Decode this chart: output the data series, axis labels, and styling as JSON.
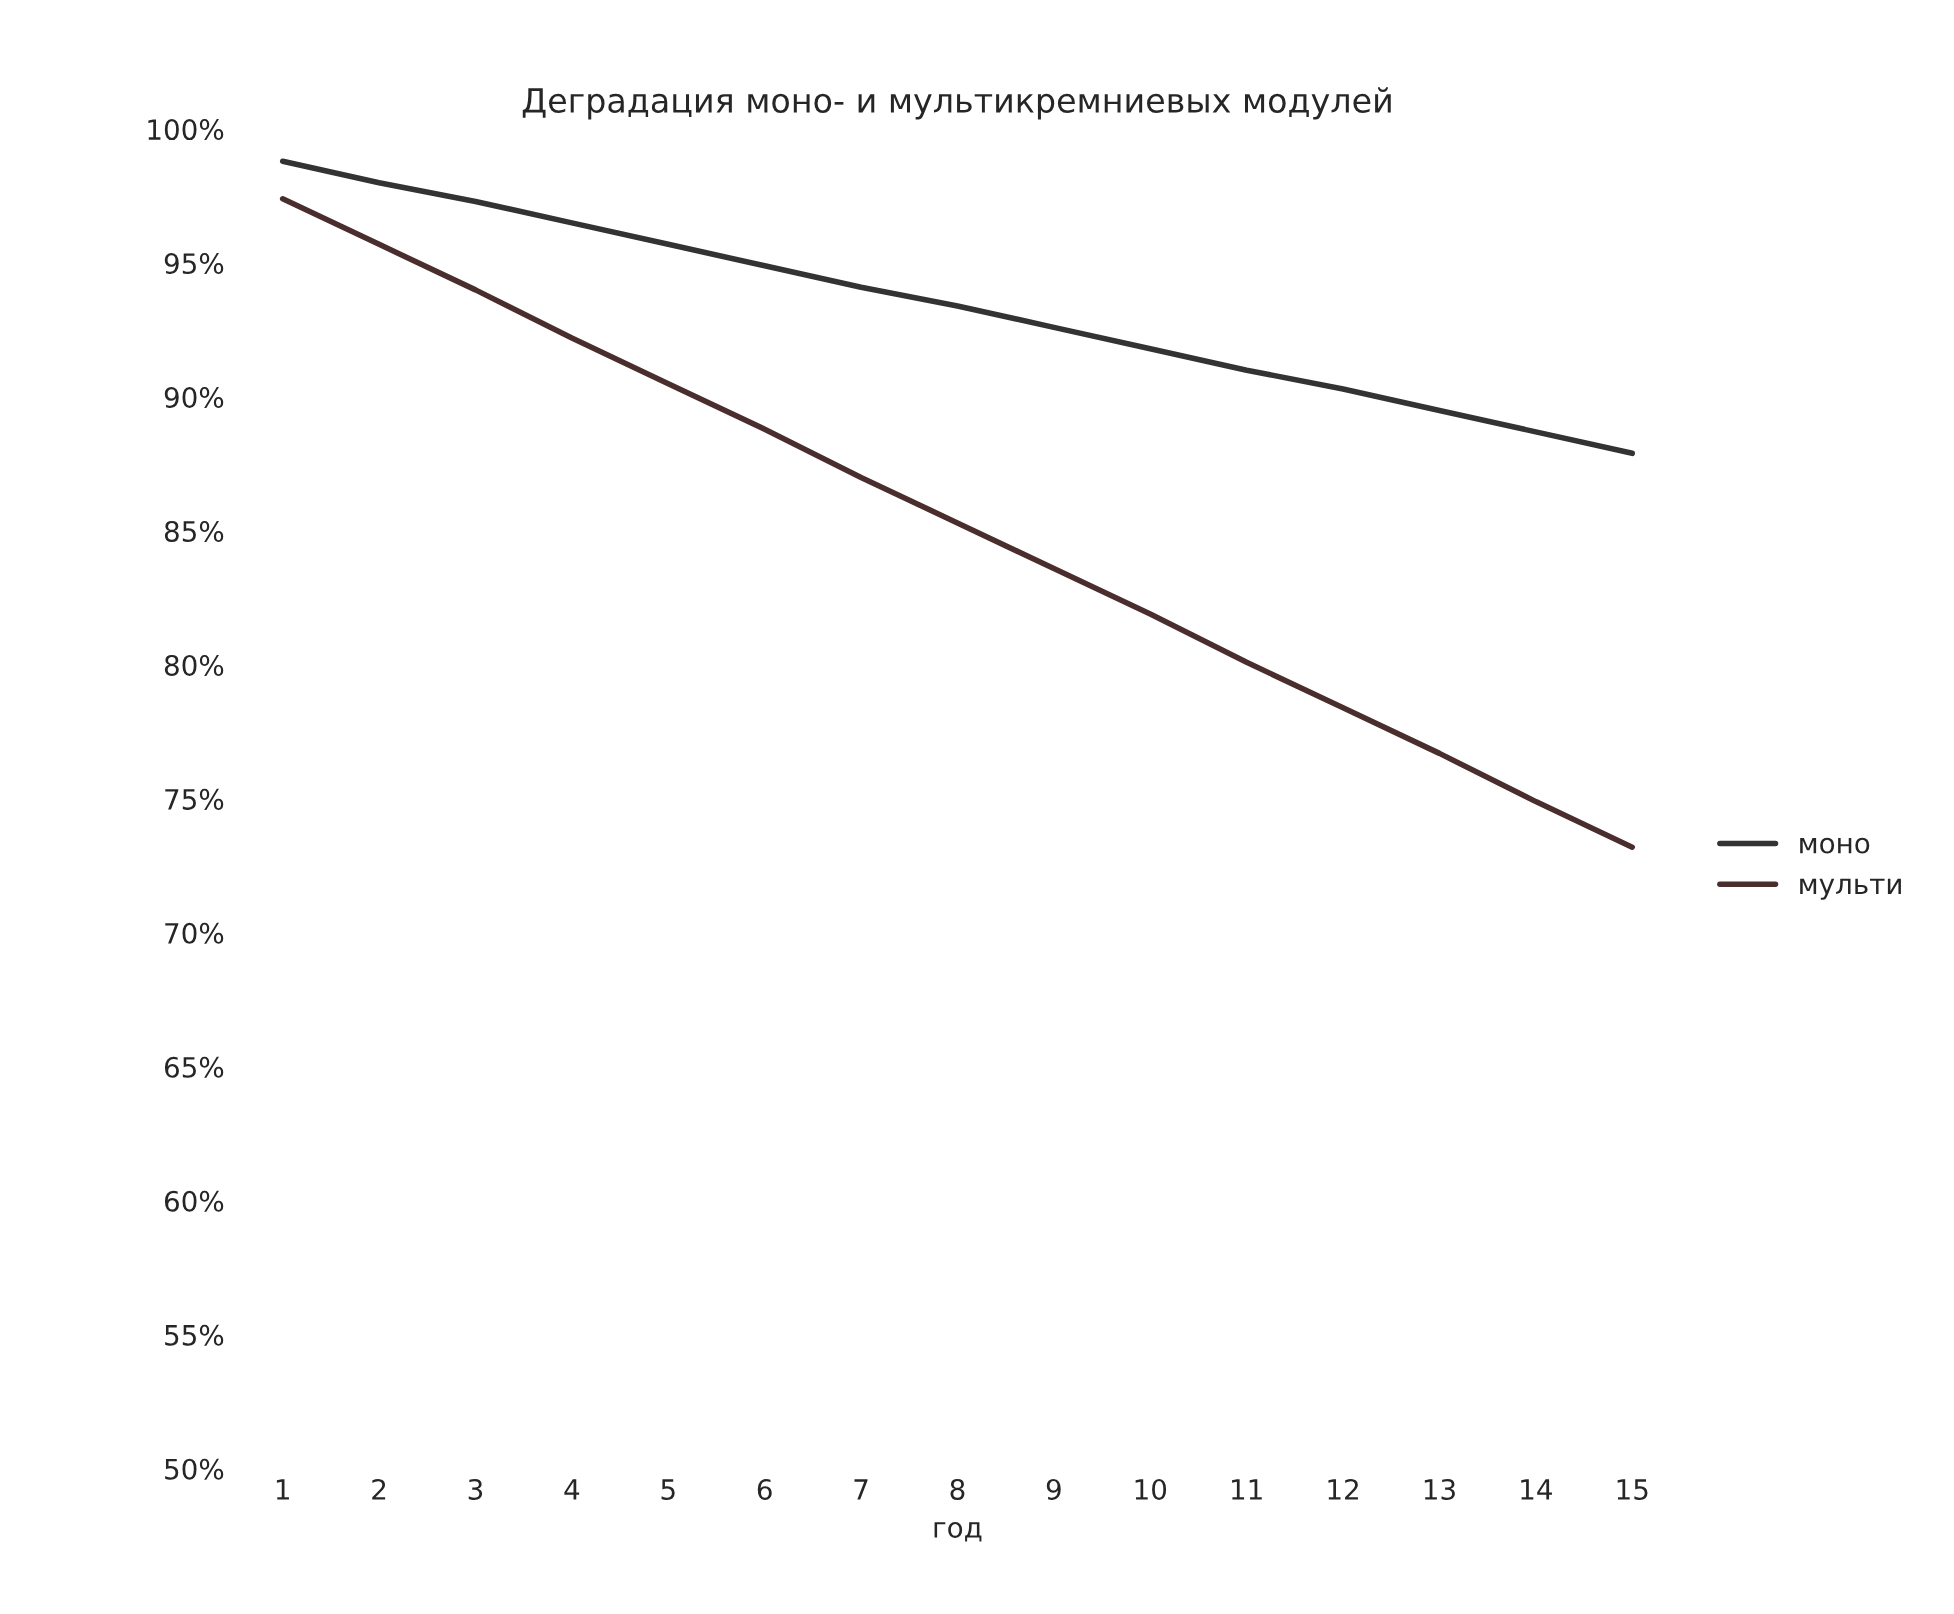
{
  "chart_data": {
    "type": "line",
    "title": "Деградация моно- и мультикремниевых модулей",
    "xlabel": "год",
    "categories": [
      "1",
      "2",
      "3",
      "4",
      "5",
      "6",
      "7",
      "8",
      "9",
      "10",
      "11",
      "12",
      "13",
      "14",
      "15"
    ],
    "series": [
      {
        "name": "моно",
        "color": "#333333",
        "values": [
          98.8,
          98.0,
          97.3,
          96.5,
          95.7,
          94.9,
          94.1,
          93.4,
          92.6,
          91.8,
          91.0,
          90.3,
          89.5,
          88.7,
          87.9
        ]
      },
      {
        "name": "мульти",
        "color": "#4a2e2e",
        "values": [
          97.4,
          95.7,
          94.0,
          92.2,
          90.5,
          88.8,
          87.0,
          85.3,
          83.6,
          81.9,
          80.1,
          78.4,
          76.7,
          74.9,
          73.2
        ]
      }
    ],
    "ylim": [
      50,
      100
    ],
    "yticks": [
      {
        "value": 50,
        "label": "50%"
      },
      {
        "value": 55,
        "label": "55%"
      },
      {
        "value": 60,
        "label": "60%"
      },
      {
        "value": 65,
        "label": "65%"
      },
      {
        "value": 70,
        "label": "70%"
      },
      {
        "value": 75,
        "label": "75%"
      },
      {
        "value": 80,
        "label": "80%"
      },
      {
        "value": 85,
        "label": "85%"
      },
      {
        "value": 90,
        "label": "90%"
      },
      {
        "value": 95,
        "label": "95%"
      },
      {
        "value": 100,
        "label": "100%"
      }
    ],
    "legend": "right",
    "marker": "none",
    "line_style": "solid"
  }
}
